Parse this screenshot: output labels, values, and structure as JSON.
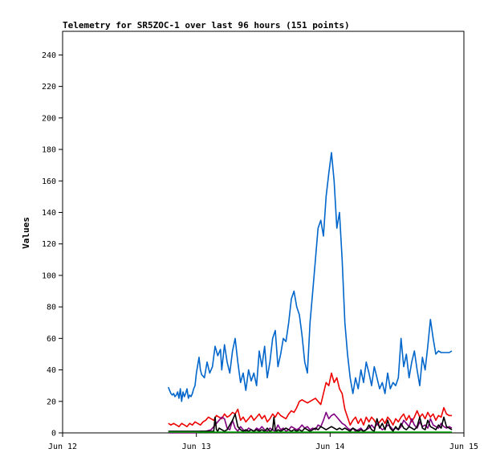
{
  "chart_data": {
    "type": "line",
    "title": "Telemetry for SR5ZOC-1 over last 96 hours (151 points)",
    "xlabel": "",
    "ylabel": "Values",
    "xlim": [
      0,
      3
    ],
    "ylim": [
      0,
      255
    ],
    "x_ticks": [
      {
        "value": 0,
        "label": "Jun 12"
      },
      {
        "value": 1,
        "label": "Jun 13"
      },
      {
        "value": 2,
        "label": "Jun 14"
      },
      {
        "value": 3,
        "label": "Jun 15"
      }
    ],
    "y_ticks": [
      0,
      20,
      40,
      60,
      80,
      100,
      120,
      140,
      160,
      180,
      200,
      220,
      240
    ],
    "grid": false,
    "series": [
      {
        "color": "#0066cc",
        "x": [
          0.79,
          0.8,
          0.81,
          0.82,
          0.83,
          0.84,
          0.85,
          0.86,
          0.87,
          0.88,
          0.89,
          0.9,
          0.91,
          0.92,
          0.93,
          0.94,
          0.95,
          0.96,
          0.97,
          0.98,
          0.99,
          1.0,
          1.02,
          1.03,
          1.04,
          1.06,
          1.08,
          1.1,
          1.12,
          1.14,
          1.16,
          1.18,
          1.19,
          1.21,
          1.23,
          1.25,
          1.27,
          1.29,
          1.31,
          1.33,
          1.35,
          1.37,
          1.39,
          1.41,
          1.43,
          1.45,
          1.47,
          1.49,
          1.51,
          1.53,
          1.55,
          1.57,
          1.59,
          1.61,
          1.63,
          1.65,
          1.67,
          1.69,
          1.71,
          1.73,
          1.75,
          1.77,
          1.79,
          1.81,
          1.83,
          1.85,
          1.87,
          1.89,
          1.91,
          1.93,
          1.95,
          1.97,
          1.99,
          2.01,
          2.03,
          2.05,
          2.07,
          2.09,
          2.11,
          2.13,
          2.15,
          2.17,
          2.19,
          2.21,
          2.23,
          2.25,
          2.27,
          2.29,
          2.31,
          2.33,
          2.35,
          2.37,
          2.39,
          2.41,
          2.43,
          2.45,
          2.47,
          2.49,
          2.51,
          2.53,
          2.55,
          2.57,
          2.59,
          2.61,
          2.63,
          2.65,
          2.67,
          2.69,
          2.71,
          2.73,
          2.75,
          2.77,
          2.79,
          2.81,
          2.83,
          2.85,
          2.87,
          2.89,
          2.91
        ],
        "y": [
          29,
          27,
          25,
          24,
          25,
          23,
          24,
          26,
          22,
          28,
          20,
          26,
          23,
          25,
          28,
          22,
          24,
          23,
          25,
          28,
          30,
          38,
          48,
          40,
          37,
          35,
          45,
          38,
          42,
          55,
          49,
          53,
          40,
          56,
          45,
          38,
          52,
          60,
          45,
          32,
          38,
          27,
          40,
          33,
          38,
          30,
          52,
          42,
          55,
          35,
          45,
          60,
          65,
          42,
          50,
          60,
          58,
          70,
          85,
          90,
          80,
          75,
          62,
          45,
          38,
          70,
          90,
          110,
          130,
          135,
          125,
          150,
          165,
          178,
          160,
          130,
          140,
          110,
          70,
          50,
          35,
          25,
          35,
          28,
          40,
          32,
          45,
          38,
          30,
          42,
          35,
          28,
          32,
          25,
          38,
          28,
          32,
          30,
          35,
          60,
          42,
          50,
          35,
          45,
          52,
          40,
          30,
          48,
          40,
          55,
          72,
          60,
          50,
          52,
          51,
          51,
          51,
          51,
          52
        ]
      },
      {
        "color": "#ee0000",
        "x": [
          0.79,
          0.81,
          0.83,
          0.85,
          0.87,
          0.89,
          0.91,
          0.93,
          0.95,
          0.97,
          0.99,
          1.01,
          1.03,
          1.05,
          1.07,
          1.09,
          1.11,
          1.13,
          1.15,
          1.17,
          1.19,
          1.21,
          1.23,
          1.25,
          1.27,
          1.29,
          1.31,
          1.33,
          1.35,
          1.37,
          1.39,
          1.41,
          1.43,
          1.45,
          1.47,
          1.49,
          1.51,
          1.53,
          1.55,
          1.57,
          1.59,
          1.61,
          1.63,
          1.65,
          1.67,
          1.69,
          1.71,
          1.73,
          1.75,
          1.77,
          1.79,
          1.81,
          1.83,
          1.85,
          1.87,
          1.89,
          1.91,
          1.93,
          1.95,
          1.97,
          1.99,
          2.01,
          2.03,
          2.05,
          2.07,
          2.09,
          2.11,
          2.13,
          2.15,
          2.17,
          2.19,
          2.21,
          2.23,
          2.25,
          2.27,
          2.29,
          2.31,
          2.33,
          2.35,
          2.37,
          2.39,
          2.41,
          2.43,
          2.45,
          2.47,
          2.49,
          2.51,
          2.53,
          2.55,
          2.57,
          2.59,
          2.61,
          2.63,
          2.65,
          2.67,
          2.69,
          2.71,
          2.73,
          2.75,
          2.77,
          2.79,
          2.81,
          2.83,
          2.85,
          2.87,
          2.89,
          2.91
        ],
        "y": [
          6,
          5,
          6,
          5,
          4,
          6,
          5,
          4,
          6,
          5,
          7,
          6,
          5,
          7,
          8,
          10,
          9,
          8,
          11,
          10,
          9,
          12,
          10,
          11,
          13,
          12,
          15,
          8,
          10,
          7,
          9,
          11,
          8,
          10,
          12,
          9,
          11,
          7,
          9,
          12,
          10,
          13,
          11,
          10,
          9,
          12,
          14,
          13,
          16,
          20,
          21,
          20,
          19,
          20,
          21,
          22,
          20,
          18,
          25,
          32,
          30,
          38,
          32,
          35,
          28,
          25,
          15,
          10,
          5,
          8,
          10,
          6,
          9,
          5,
          10,
          7,
          10,
          8,
          5,
          7,
          9,
          6,
          10,
          8,
          5,
          9,
          7,
          10,
          12,
          8,
          11,
          7,
          10,
          14,
          10,
          12,
          9,
          13,
          10,
          12,
          8,
          11,
          10,
          16,
          12,
          11,
          11
        ]
      },
      {
        "color": "#800080",
        "x": [
          0.79,
          0.83,
          0.87,
          0.91,
          0.95,
          0.99,
          1.03,
          1.07,
          1.11,
          1.15,
          1.17,
          1.19,
          1.21,
          1.23,
          1.25,
          1.27,
          1.29,
          1.31,
          1.33,
          1.35,
          1.37,
          1.39,
          1.41,
          1.43,
          1.45,
          1.47,
          1.49,
          1.51,
          1.53,
          1.55,
          1.57,
          1.59,
          1.61,
          1.63,
          1.65,
          1.67,
          1.69,
          1.71,
          1.73,
          1.75,
          1.77,
          1.79,
          1.81,
          1.83,
          1.85,
          1.87,
          1.89,
          1.91,
          1.93,
          1.95,
          1.97,
          1.99,
          2.01,
          2.03,
          2.05,
          2.07,
          2.09,
          2.11,
          2.13,
          2.15,
          2.17,
          2.19,
          2.21,
          2.23,
          2.25,
          2.27,
          2.29,
          2.31,
          2.33,
          2.35,
          2.37,
          2.39,
          2.41,
          2.43,
          2.45,
          2.47,
          2.49,
          2.51,
          2.53,
          2.55,
          2.57,
          2.59,
          2.61,
          2.63,
          2.65,
          2.67,
          2.69,
          2.71,
          2.73,
          2.75,
          2.77,
          2.79,
          2.81,
          2.83,
          2.85,
          2.87,
          2.89,
          2.91
        ],
        "y": [
          0,
          0,
          0,
          0,
          0,
          0,
          1,
          1,
          2,
          6,
          8,
          10,
          9,
          3,
          2,
          8,
          3,
          1,
          4,
          2,
          1,
          3,
          2,
          1,
          3,
          2,
          4,
          2,
          1,
          3,
          2,
          1,
          5,
          2,
          3,
          1,
          2,
          4,
          3,
          2,
          3,
          5,
          3,
          4,
          2,
          3,
          2,
          5,
          4,
          8,
          13,
          9,
          11,
          12,
          10,
          8,
          6,
          5,
          3,
          2,
          3,
          1,
          2,
          3,
          1,
          2,
          3,
          5,
          3,
          6,
          4,
          2,
          3,
          5,
          4,
          2,
          3,
          2,
          4,
          8,
          6,
          4,
          9,
          5,
          3,
          7,
          4,
          5,
          3,
          9,
          5,
          4,
          3,
          6,
          4,
          3,
          4,
          3
        ]
      },
      {
        "color": "#000000",
        "x": [
          0.79,
          0.83,
          0.87,
          0.91,
          0.95,
          0.99,
          1.03,
          1.07,
          1.11,
          1.13,
          1.14,
          1.15,
          1.16,
          1.17,
          1.19,
          1.21,
          1.23,
          1.25,
          1.27,
          1.29,
          1.31,
          1.33,
          1.35,
          1.37,
          1.39,
          1.41,
          1.43,
          1.45,
          1.47,
          1.49,
          1.51,
          1.53,
          1.55,
          1.57,
          1.58,
          1.59,
          1.6,
          1.61,
          1.63,
          1.65,
          1.67,
          1.69,
          1.71,
          1.73,
          1.75,
          1.77,
          1.79,
          1.81,
          1.83,
          1.85,
          1.87,
          1.89,
          1.91,
          1.93,
          1.95,
          1.97,
          1.99,
          2.01,
          2.03,
          2.05,
          2.07,
          2.09,
          2.11,
          2.13,
          2.15,
          2.17,
          2.19,
          2.21,
          2.23,
          2.25,
          2.27,
          2.29,
          2.31,
          2.33,
          2.35,
          2.37,
          2.39,
          2.41,
          2.43,
          2.45,
          2.47,
          2.49,
          2.51,
          2.53,
          2.55,
          2.57,
          2.59,
          2.61,
          2.63,
          2.65,
          2.67,
          2.69,
          2.71,
          2.73,
          2.75,
          2.77,
          2.79,
          2.81,
          2.83,
          2.85,
          2.87,
          2.89,
          2.91
        ],
        "y": [
          1,
          1,
          1,
          1,
          1,
          1,
          1,
          1,
          1,
          1,
          10,
          2,
          1,
          3,
          2,
          1,
          2,
          5,
          8,
          12,
          4,
          2,
          1,
          2,
          1,
          2,
          1,
          2,
          1,
          2,
          1,
          3,
          1,
          2,
          10,
          2,
          1,
          2,
          1,
          2,
          3,
          2,
          1,
          2,
          1,
          2,
          1,
          3,
          2,
          1,
          2,
          3,
          2,
          4,
          3,
          2,
          3,
          4,
          3,
          2,
          3,
          2,
          3,
          2,
          1,
          3,
          2,
          1,
          2,
          1,
          2,
          5,
          2,
          1,
          9,
          3,
          6,
          2,
          8,
          3,
          1,
          4,
          2,
          6,
          3,
          2,
          4,
          3,
          2,
          4,
          10,
          3,
          2,
          8,
          4,
          3,
          2,
          5,
          3,
          10,
          4,
          3,
          2
        ]
      },
      {
        "color": "#00aa00",
        "x": [
          0.79,
          0.85,
          0.91,
          0.97,
          1.03,
          1.09,
          1.15,
          1.21,
          1.27,
          1.33,
          1.39,
          1.45,
          1.51,
          1.57,
          1.63,
          1.69,
          1.75,
          1.81,
          1.87,
          1.93,
          1.99,
          2.05,
          2.11,
          2.17,
          2.23,
          2.29,
          2.35,
          2.41,
          2.47,
          2.53,
          2.59,
          2.65,
          2.71,
          2.77,
          2.83,
          2.89,
          2.91
        ],
        "y": [
          0.5,
          0.5,
          0.5,
          0.5,
          0.5,
          0.5,
          0.5,
          0.5,
          0.5,
          0.5,
          0.5,
          0.5,
          0.5,
          0.5,
          0.5,
          0.5,
          0.5,
          0.5,
          0.5,
          0.5,
          0.5,
          0.5,
          0.5,
          0.5,
          0.5,
          0.5,
          0.5,
          0.5,
          0.5,
          0.5,
          0.5,
          0.5,
          0.5,
          0.5,
          0.5,
          0.5,
          0.5
        ]
      }
    ]
  }
}
